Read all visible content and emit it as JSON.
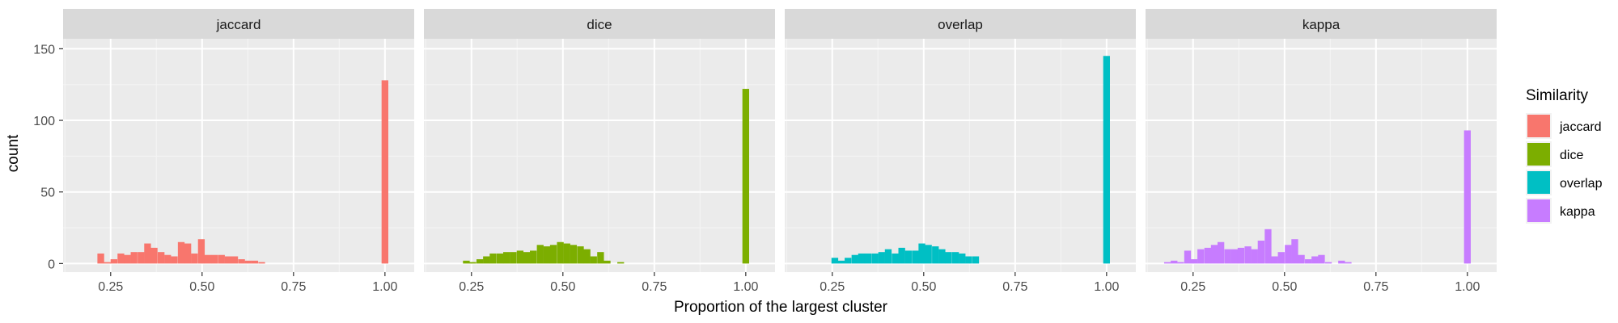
{
  "chart_data": {
    "type": "bar",
    "facet_by": "Similarity",
    "xlabel": "Proportion of the largest cluster",
    "ylabel": "count",
    "xlim": [
      0.12,
      1.08
    ],
    "ylim": [
      -6,
      157
    ],
    "x_ticks": [
      0.25,
      0.5,
      0.75,
      1.0
    ],
    "x_tick_labels": [
      "0.25",
      "0.50",
      "0.75",
      "1.00"
    ],
    "y_ticks": [
      0,
      50,
      100,
      150
    ],
    "y_tick_labels": [
      "0",
      "50",
      "100",
      "150"
    ],
    "bin_width": 0.0184,
    "grid": true,
    "legend": {
      "title": "Similarity",
      "position": "right",
      "entries": [
        {
          "label": "jaccard",
          "color": "#F8766D"
        },
        {
          "label": "dice",
          "color": "#7CAE00"
        },
        {
          "label": "overlap",
          "color": "#00BFC4"
        },
        {
          "label": "kappa",
          "color": "#C77CFF"
        }
      ]
    },
    "panels": [
      {
        "name": "jaccard",
        "color": "#F8766D",
        "bins": [
          {
            "x": 0.223,
            "count": 7
          },
          {
            "x": 0.241,
            "count": 1
          },
          {
            "x": 0.259,
            "count": 3
          },
          {
            "x": 0.278,
            "count": 7
          },
          {
            "x": 0.296,
            "count": 6
          },
          {
            "x": 0.314,
            "count": 8
          },
          {
            "x": 0.333,
            "count": 8
          },
          {
            "x": 0.351,
            "count": 14
          },
          {
            "x": 0.369,
            "count": 11
          },
          {
            "x": 0.388,
            "count": 8
          },
          {
            "x": 0.406,
            "count": 6
          },
          {
            "x": 0.424,
            "count": 5
          },
          {
            "x": 0.443,
            "count": 15
          },
          {
            "x": 0.461,
            "count": 14
          },
          {
            "x": 0.479,
            "count": 7
          },
          {
            "x": 0.498,
            "count": 17
          },
          {
            "x": 0.516,
            "count": 6
          },
          {
            "x": 0.534,
            "count": 6
          },
          {
            "x": 0.553,
            "count": 6
          },
          {
            "x": 0.571,
            "count": 5
          },
          {
            "x": 0.589,
            "count": 5
          },
          {
            "x": 0.608,
            "count": 3
          },
          {
            "x": 0.626,
            "count": 2
          },
          {
            "x": 0.644,
            "count": 2
          },
          {
            "x": 0.663,
            "count": 1
          },
          {
            "x": 1.0,
            "count": 128
          }
        ]
      },
      {
        "name": "dice",
        "color": "#7CAE00",
        "bins": [
          {
            "x": 0.236,
            "count": 2
          },
          {
            "x": 0.254,
            "count": 1
          },
          {
            "x": 0.273,
            "count": 3
          },
          {
            "x": 0.291,
            "count": 5
          },
          {
            "x": 0.309,
            "count": 7
          },
          {
            "x": 0.328,
            "count": 7
          },
          {
            "x": 0.346,
            "count": 8
          },
          {
            "x": 0.364,
            "count": 8
          },
          {
            "x": 0.383,
            "count": 9
          },
          {
            "x": 0.401,
            "count": 8
          },
          {
            "x": 0.419,
            "count": 9
          },
          {
            "x": 0.438,
            "count": 13
          },
          {
            "x": 0.456,
            "count": 12
          },
          {
            "x": 0.474,
            "count": 13
          },
          {
            "x": 0.493,
            "count": 15
          },
          {
            "x": 0.511,
            "count": 14
          },
          {
            "x": 0.529,
            "count": 13
          },
          {
            "x": 0.548,
            "count": 12
          },
          {
            "x": 0.566,
            "count": 10
          },
          {
            "x": 0.584,
            "count": 5
          },
          {
            "x": 0.603,
            "count": 8
          },
          {
            "x": 0.621,
            "count": 2
          },
          {
            "x": 0.658,
            "count": 1
          },
          {
            "x": 1.0,
            "count": 122
          }
        ]
      },
      {
        "name": "overlap",
        "color": "#00BFC4",
        "bins": [
          {
            "x": 0.257,
            "count": 4
          },
          {
            "x": 0.275,
            "count": 2
          },
          {
            "x": 0.293,
            "count": 4
          },
          {
            "x": 0.312,
            "count": 6
          },
          {
            "x": 0.33,
            "count": 7
          },
          {
            "x": 0.348,
            "count": 7
          },
          {
            "x": 0.367,
            "count": 7
          },
          {
            "x": 0.385,
            "count": 8
          },
          {
            "x": 0.403,
            "count": 10
          },
          {
            "x": 0.422,
            "count": 7
          },
          {
            "x": 0.44,
            "count": 11
          },
          {
            "x": 0.458,
            "count": 9
          },
          {
            "x": 0.477,
            "count": 9
          },
          {
            "x": 0.495,
            "count": 14
          },
          {
            "x": 0.513,
            "count": 13
          },
          {
            "x": 0.532,
            "count": 12
          },
          {
            "x": 0.55,
            "count": 10
          },
          {
            "x": 0.568,
            "count": 8
          },
          {
            "x": 0.587,
            "count": 8
          },
          {
            "x": 0.605,
            "count": 7
          },
          {
            "x": 0.623,
            "count": 5
          },
          {
            "x": 0.642,
            "count": 5
          },
          {
            "x": 1.0,
            "count": 145
          }
        ]
      },
      {
        "name": "kappa",
        "color": "#C77CFF",
        "bins": [
          {
            "x": 0.18,
            "count": 1
          },
          {
            "x": 0.198,
            "count": 2
          },
          {
            "x": 0.216,
            "count": 1
          },
          {
            "x": 0.235,
            "count": 9
          },
          {
            "x": 0.253,
            "count": 3
          },
          {
            "x": 0.271,
            "count": 10
          },
          {
            "x": 0.29,
            "count": 11
          },
          {
            "x": 0.308,
            "count": 13
          },
          {
            "x": 0.326,
            "count": 15
          },
          {
            "x": 0.345,
            "count": 10
          },
          {
            "x": 0.363,
            "count": 10
          },
          {
            "x": 0.381,
            "count": 11
          },
          {
            "x": 0.4,
            "count": 12
          },
          {
            "x": 0.418,
            "count": 10
          },
          {
            "x": 0.436,
            "count": 16
          },
          {
            "x": 0.455,
            "count": 24
          },
          {
            "x": 0.473,
            "count": 5
          },
          {
            "x": 0.491,
            "count": 8
          },
          {
            "x": 0.51,
            "count": 13
          },
          {
            "x": 0.528,
            "count": 17
          },
          {
            "x": 0.546,
            "count": 6
          },
          {
            "x": 0.565,
            "count": 3
          },
          {
            "x": 0.583,
            "count": 5
          },
          {
            "x": 0.601,
            "count": 6
          },
          {
            "x": 0.62,
            "count": 1
          },
          {
            "x": 0.656,
            "count": 2
          },
          {
            "x": 0.674,
            "count": 1
          },
          {
            "x": 1.0,
            "count": 93
          }
        ]
      }
    ]
  }
}
